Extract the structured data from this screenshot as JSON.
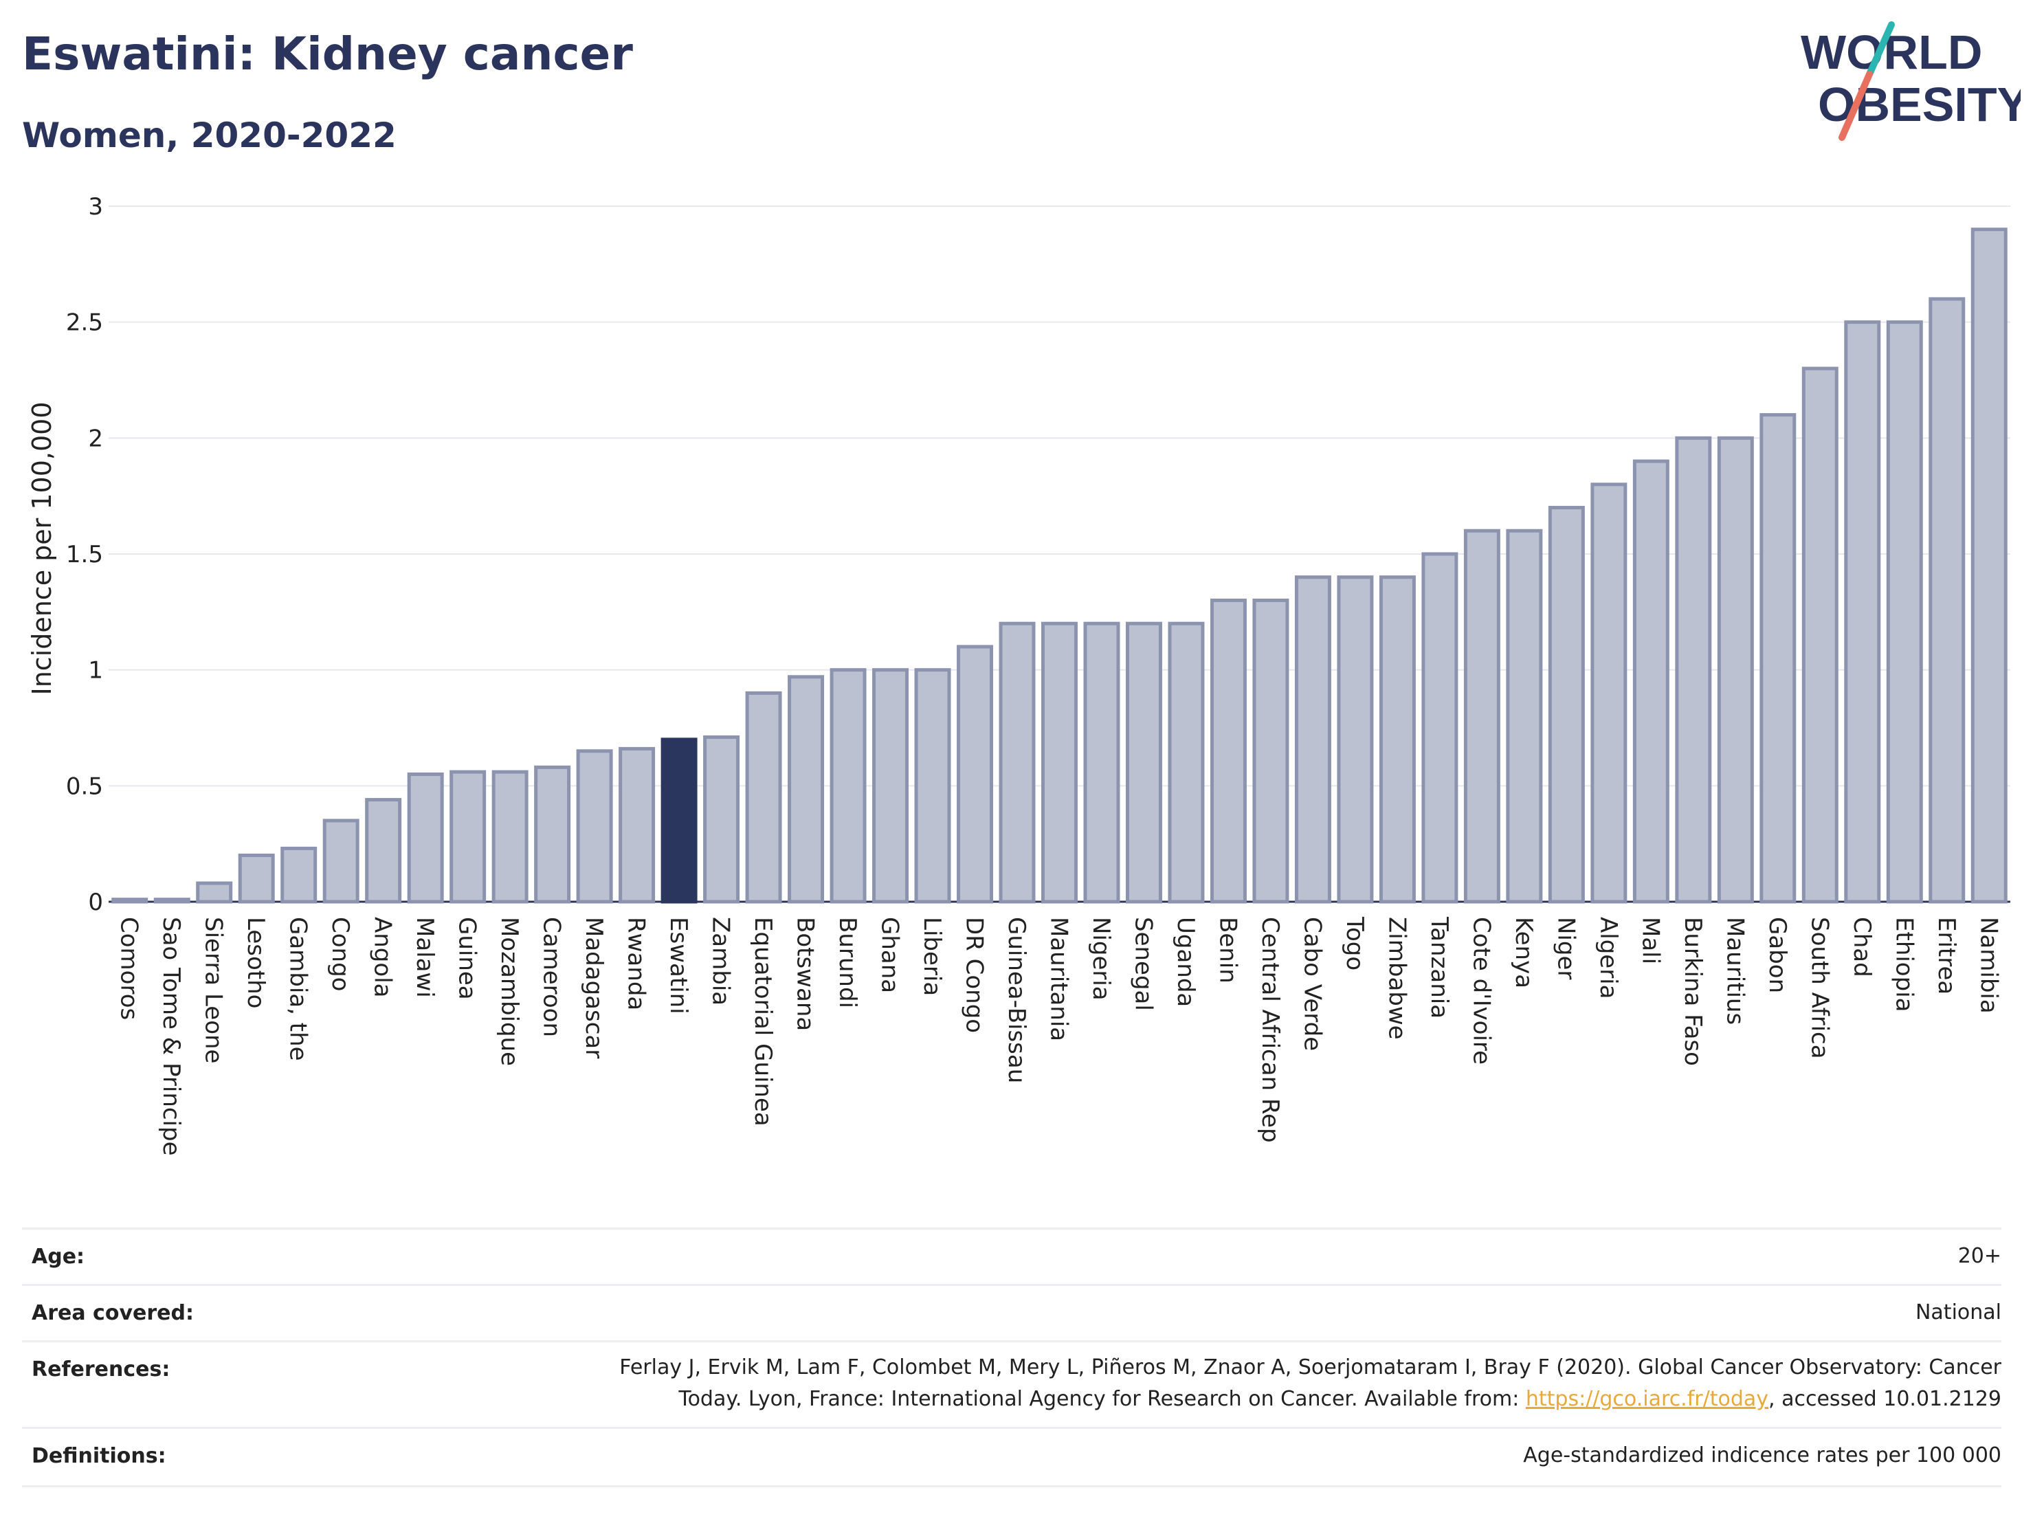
{
  "header": {
    "title": "Eswatini: Kidney cancer",
    "subtitle": "Women, 2020-2022"
  },
  "logo": {
    "line1": "WORLD",
    "line2": "OBESITY"
  },
  "colors": {
    "bar": "#bcc1d1",
    "bar_stroke": "#8b93ae",
    "highlight": "#2b365e",
    "grid": "#e6e8ee",
    "text": "#2b345c"
  },
  "chart_data": {
    "type": "bar",
    "ylabel": "Incidence per 100,000",
    "ylim": [
      0,
      3
    ],
    "yticks": [
      "0",
      "0.5",
      "1",
      "1.5",
      "2",
      "2.5",
      "3"
    ],
    "highlight": "Eswatini",
    "categories": [
      "Comoros",
      "Sao Tome & Principe",
      "Sierra Leone",
      "Lesotho",
      "Gambia, the",
      "Congo",
      "Angola",
      "Malawi",
      "Guinea",
      "Mozambique",
      "Cameroon",
      "Madagascar",
      "Rwanda",
      "Eswatini",
      "Zambia",
      "Equatorial Guinea",
      "Botswana",
      "Burundi",
      "Ghana",
      "Liberia",
      "DR Congo",
      "Guinea-Bissau",
      "Mauritania",
      "Nigeria",
      "Senegal",
      "Uganda",
      "Benin",
      "Central African Rep",
      "Cabo Verde",
      "Togo",
      "Zimbabwe",
      "Tanzania",
      "Cote d'Ivoire",
      "Kenya",
      "Niger",
      "Algeria",
      "Mali",
      "Burkina Faso",
      "Mauritius",
      "Gabon",
      "South Africa",
      "Chad",
      "Ethiopia",
      "Eritrea",
      "Namibia"
    ],
    "values": [
      0.01,
      0.01,
      0.08,
      0.2,
      0.23,
      0.35,
      0.44,
      0.55,
      0.56,
      0.56,
      0.58,
      0.65,
      0.66,
      0.7,
      0.71,
      0.9,
      0.97,
      1.0,
      1.0,
      1.0,
      1.1,
      1.2,
      1.2,
      1.2,
      1.2,
      1.2,
      1.3,
      1.3,
      1.4,
      1.4,
      1.4,
      1.5,
      1.6,
      1.6,
      1.7,
      1.8,
      1.9,
      2.0,
      2.0,
      2.1,
      2.3,
      2.5,
      2.5,
      2.6,
      2.9
    ]
  },
  "meta": {
    "age_label": "Age:",
    "age_value": "20+",
    "area_label": "Area covered:",
    "area_value": "National",
    "references_label": "References:",
    "references_line1": "Ferlay J, Ervik M, Lam F, Colombet M, Mery L, Piñeros M, Znaor A, Soerjomataram I, Bray F (2020). Global Cancer Observatory: Cancer",
    "references_line2_pre": "Today. Lyon, France: International Agency for Research on Cancer. Available from: ",
    "references_link": "https://gco.iarc.fr/today",
    "references_line2_post": ", accessed 10.01.2129",
    "definitions_label": "Definitions:",
    "definitions_value": "Age-standardized indicence rates per 100 000"
  }
}
